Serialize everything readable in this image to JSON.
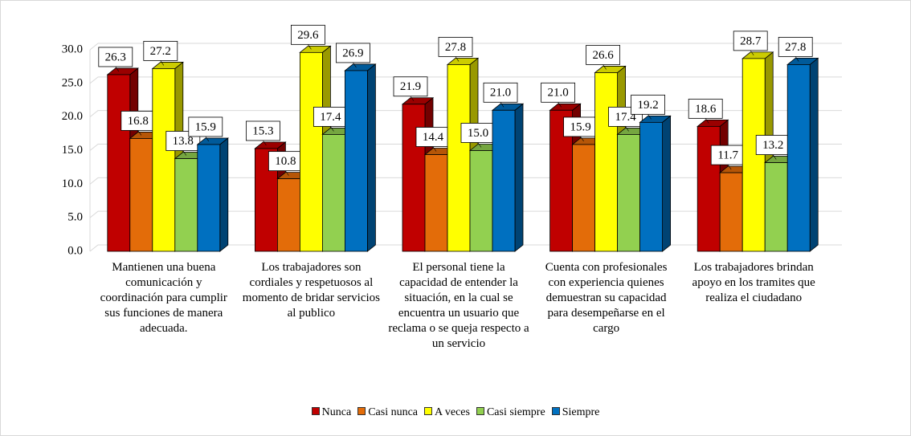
{
  "chart_data": {
    "type": "bar3d",
    "categories": [
      "Mantienen una buena comunicación y coordinación para cumplir sus funciones de manera adecuada.",
      "Los trabajadores son cordiales y respetuosos al momento de bridar servicios al publico",
      "El personal tiene la capacidad de entender la situación, en la cual se encuentra un usuario que reclama o se queja respecto a un servicio",
      "Cuenta con profesionales con experiencia  quienes demuestran su capacidad para desempeñarse en el cargo",
      "Los trabajadores brindan apoyo en los tramites que realiza el ciudadano"
    ],
    "series": [
      {
        "name": "Nunca",
        "color": "#c00000",
        "values": [
          26.3,
          15.3,
          21.9,
          21.0,
          18.6
        ],
        "value_labels": [
          "26.3",
          "15.3",
          "21.9",
          "21.0",
          "18.6"
        ]
      },
      {
        "name": "Casi nunca",
        "color": "#e36c09",
        "values": [
          16.8,
          10.8,
          14.4,
          15.9,
          11.7
        ],
        "value_labels": [
          "16.8",
          "10.8",
          "14.4",
          "15.9",
          "11.7"
        ]
      },
      {
        "name": "A veces",
        "color": "#ffff00",
        "values": [
          27.2,
          29.6,
          27.8,
          26.6,
          28.7
        ],
        "value_labels": [
          "27.2",
          "29.6",
          "27.8",
          "26.6",
          "28.7"
        ]
      },
      {
        "name": "Casi siempre",
        "color": "#92d050",
        "values": [
          13.8,
          17.4,
          15.0,
          17.4,
          13.2
        ],
        "value_labels": [
          "13.8",
          "17.4",
          "15.0",
          "17.4",
          "13.2"
        ]
      },
      {
        "name": "Siempre",
        "color": "#0070c0",
        "values": [
          15.9,
          26.9,
          21.0,
          19.2,
          27.8
        ],
        "value_labels": [
          "15.9",
          "26.9",
          "21.0",
          "19.2",
          "27.8"
        ]
      }
    ],
    "ylim": [
      0,
      30
    ],
    "yticks": [
      {
        "value": 0,
        "label": "0.0"
      },
      {
        "value": 5,
        "label": "5.0"
      },
      {
        "value": 10,
        "label": "10.0"
      },
      {
        "value": 15,
        "label": "15.0"
      },
      {
        "value": 20,
        "label": "20.0"
      },
      {
        "value": 25,
        "label": "25.0"
      },
      {
        "value": 30,
        "label": "30.0"
      }
    ],
    "grid": true,
    "legend": "bottom"
  }
}
